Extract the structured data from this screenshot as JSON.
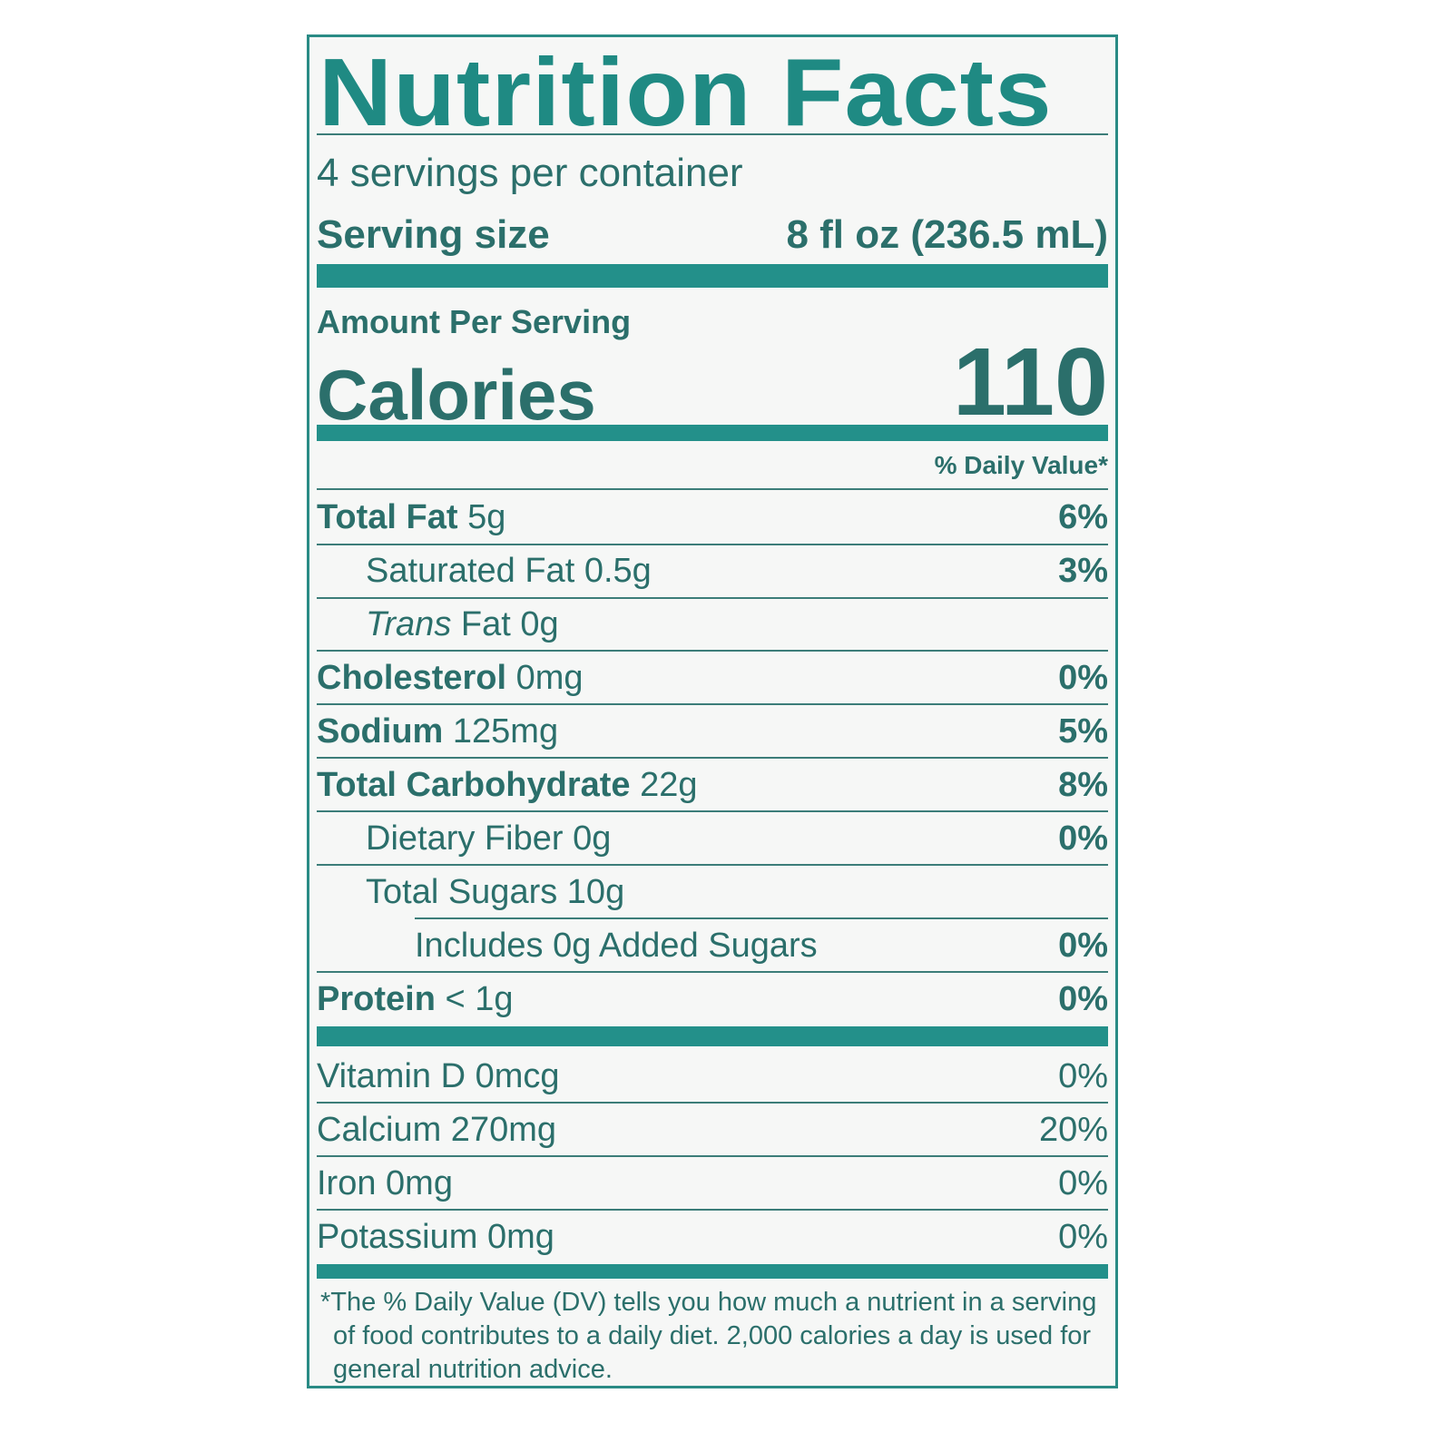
{
  "title": "Nutrition Facts",
  "servings_per_container": "4 servings per container",
  "serving_size_label": "Serving size",
  "serving_size_value": "8 fl oz (236.5 mL)",
  "amount_per_serving": "Amount Per Serving",
  "calories_label": "Calories",
  "calories_value": "110",
  "daily_value_header": "% Daily Value*",
  "nutrients": [
    {
      "name": "Total Fat",
      "amount": "5g",
      "dv": "6%"
    },
    {
      "name": "Saturated Fat",
      "amount": "0.5g",
      "dv": "3%"
    },
    {
      "name": "Trans",
      "name_rest": "Fat",
      "amount": "0g",
      "dv": ""
    },
    {
      "name": "Cholesterol",
      "amount": "0mg",
      "dv": "0%"
    },
    {
      "name": "Sodium",
      "amount": "125mg",
      "dv": "5%"
    },
    {
      "name": "Total Carbohydrate",
      "amount": "22g",
      "dv": "8%"
    },
    {
      "name": "Dietary Fiber",
      "amount": "0g",
      "dv": "0%"
    },
    {
      "name": "Total Sugars",
      "amount": "10g",
      "dv": ""
    },
    {
      "name": "Includes 0g Added Sugars",
      "amount": "",
      "dv": "0%"
    },
    {
      "name": "Protein",
      "amount": "< 1g",
      "dv": "0%"
    }
  ],
  "vitamins": [
    {
      "label": "Vitamin D 0mcg",
      "dv": "0%"
    },
    {
      "label": "Calcium 270mg",
      "dv": "20%"
    },
    {
      "label": "Iron 0mg",
      "dv": "0%"
    },
    {
      "label": "Potassium 0mg",
      "dv": "0%"
    }
  ],
  "footnote": "*The % Daily Value (DV) tells you how much a nutrient in a serving of food contributes to a daily diet. 2,000 calories a day is used for general nutrition advice.",
  "colors": {
    "teal": "#1f8a83",
    "text": "#2b6f6b"
  }
}
